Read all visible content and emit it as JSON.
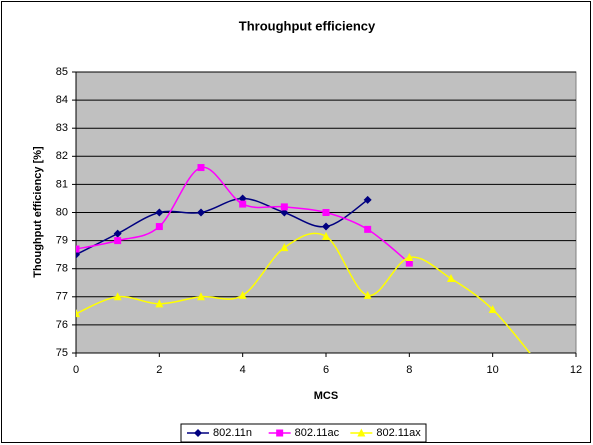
{
  "chart_data": {
    "type": "line",
    "title": "Throughput efficiency",
    "xlabel": "MCS",
    "ylabel": "Thoughput efficiency [%]",
    "xlim": [
      0,
      12
    ],
    "xticks": [
      0,
      2,
      4,
      6,
      8,
      10,
      12
    ],
    "ylim": [
      75,
      85
    ],
    "yticks": [
      75,
      76,
      77,
      78,
      79,
      80,
      81,
      82,
      83,
      84,
      85
    ],
    "grid": true,
    "legend": "bottom",
    "smooth": true,
    "series": [
      {
        "name": "802.11n",
        "color": "#000080",
        "marker": "diamond",
        "x": [
          0,
          1,
          2,
          3,
          4,
          5,
          6,
          7
        ],
        "values": [
          78.5,
          79.25,
          80.0,
          80.0,
          80.5,
          80.0,
          79.5,
          80.45
        ]
      },
      {
        "name": "802.11ac",
        "color": "#ff00ff",
        "marker": "square",
        "x": [
          0,
          1,
          2,
          3,
          4,
          5,
          6,
          7,
          8
        ],
        "values": [
          78.7,
          79.0,
          79.5,
          81.6,
          80.3,
          80.2,
          80.0,
          79.4,
          78.2
        ]
      },
      {
        "name": "802.11ax",
        "color": "#ffff00",
        "marker": "triangle",
        "x": [
          0,
          1,
          2,
          3,
          4,
          5,
          6,
          7,
          8,
          9,
          10,
          11
        ],
        "values": [
          76.4,
          77.0,
          76.75,
          77.0,
          77.05,
          78.75,
          79.15,
          77.05,
          78.4,
          77.65,
          76.55,
          74.8
        ]
      }
    ]
  }
}
